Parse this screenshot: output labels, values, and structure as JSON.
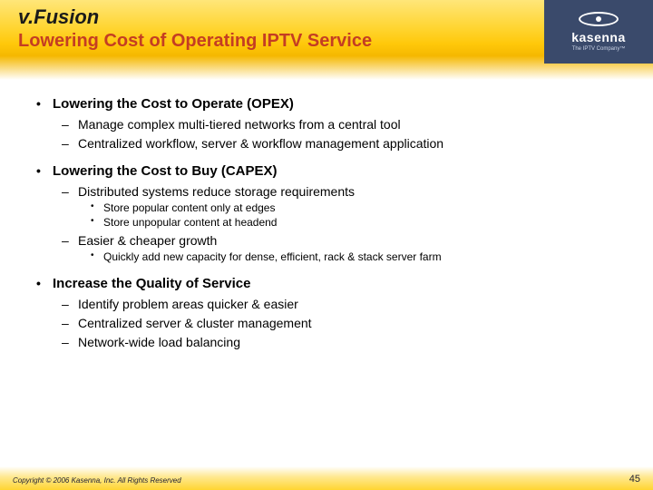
{
  "header": {
    "title_line1": "v.Fusion",
    "title_line2": "Lowering Cost of Operating IPTV Service",
    "logo_brand": "kasenna",
    "logo_tagline": "The IPTV Company™",
    "colors": {
      "gradient_top": "#ffe679",
      "gradient_mid": "#ffc80a",
      "title2_color": "#c43d23",
      "logo_bg": "#3a4a6b"
    }
  },
  "bullets": [
    {
      "text": "Lowering the Cost to Operate (OPEX)",
      "sub": [
        {
          "text": "Manage complex multi-tiered networks from a central tool"
        },
        {
          "text": "Centralized workflow, server & workflow management application"
        }
      ]
    },
    {
      "text": "Lowering the Cost to Buy (CAPEX)",
      "sub": [
        {
          "text": "Distributed systems reduce storage requirements",
          "sub": [
            {
              "text": "Store popular content only at edges"
            },
            {
              "text": "Store unpopular content at headend"
            }
          ]
        },
        {
          "text": "Easier & cheaper growth",
          "sub": [
            {
              "text": "Quickly add new capacity for dense, efficient, rack & stack server farm"
            }
          ]
        }
      ]
    },
    {
      "text": "Increase the Quality of Service",
      "sub": [
        {
          "text": "Identify problem areas quicker & easier"
        },
        {
          "text": "Centralized server & cluster management"
        },
        {
          "text": "Network-wide load balancing"
        }
      ]
    }
  ],
  "footer": {
    "copyright": "Copyright © 2006 Kasenna, Inc. All Rights Reserved",
    "page": "45"
  }
}
